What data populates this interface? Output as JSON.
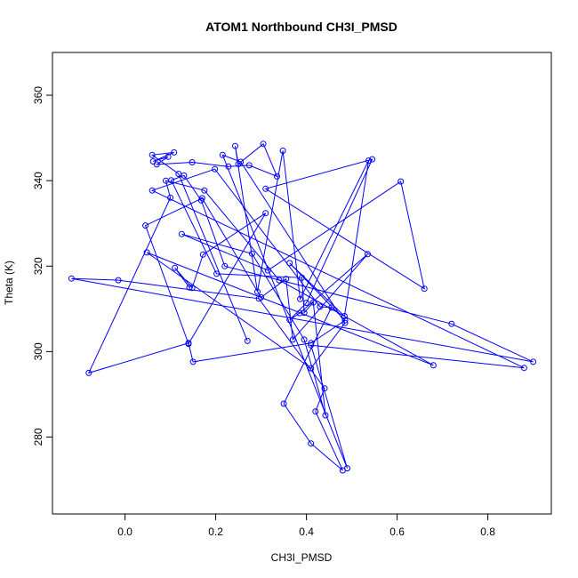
{
  "chart_data": {
    "type": "line",
    "title": "ATOM1 Northbound CH3I_PMSD",
    "xlabel": "CH3I_PMSD",
    "ylabel": "Theta (K)",
    "xlim": [
      -0.16,
      0.94
    ],
    "ylim": [
      262,
      370
    ],
    "xticks": [
      0.0,
      0.2,
      0.4,
      0.6,
      0.8
    ],
    "xtick_labels": [
      "0.0",
      "0.2",
      "0.4",
      "0.6",
      "0.8"
    ],
    "yticks": [
      280,
      300,
      320,
      340,
      360
    ],
    "ytick_labels": [
      "280",
      "300",
      "320",
      "340",
      "360"
    ],
    "grid": false,
    "color": "#0000ff",
    "series": [
      {
        "marker": "open-circle",
        "x": [
          0.27,
          0.118,
          0.06,
          0.108,
          0.062,
          0.095,
          0.07,
          0.148,
          0.228,
          0.274,
          0.335,
          0.305,
          0.25,
          0.243,
          0.292,
          0.348,
          0.386,
          0.537,
          0.484,
          0.363,
          0.485,
          0.41,
          0.15,
          0.14,
          -0.08,
          0.1,
          0.09,
          0.175,
          0.34,
          0.68,
          0.048,
          0.41,
          0.485,
          0.255,
          0.215,
          0.49,
          0.41,
          0.88,
          0.06,
          0.198,
          0.43,
          0.455,
          0.35,
          0.41,
          0.48,
          0.42,
          0.44,
          0.295,
          -0.015,
          -0.118,
          0.9,
          0.72,
          0.22,
          0.168,
          0.13,
          0.102,
          0.202,
          0.39,
          0.395,
          0.415,
          0.442,
          0.395,
          0.28,
          0.125,
          0.315,
          0.608,
          0.66,
          0.31,
          0.545,
          0.4,
          0.363,
          0.385,
          0.535,
          0.37,
          0.355,
          0.3,
          0.17,
          0.045,
          0.14,
          0.31,
          0.172,
          0.148,
          0.11,
          0.142
        ],
        "y": [
          302.5,
          341.6,
          346.0,
          346.6,
          344.5,
          345.6,
          343.8,
          344.3,
          343.3,
          343.6,
          341.0,
          348.6,
          343.9,
          348.1,
          314.0,
          347.0,
          312.3,
          344.7,
          308.3,
          320.7,
          307.3,
          302.0,
          297.6,
          302.0,
          295.0,
          336.0,
          340.0,
          337.7,
          316.7,
          296.8,
          323.2,
          296.1,
          306.7,
          344.4,
          346.0,
          272.7,
          301.5,
          296.2,
          337.7,
          342.7,
          310.5,
          310.3,
          287.8,
          278.5,
          272.2,
          286.0,
          291.4,
          312.4,
          316.7,
          317.1,
          297.6,
          306.5,
          320.0,
          335.4,
          341.2,
          340.1,
          318.2,
          317.3,
          309.1,
          311.5,
          285.1,
          302.8,
          322.9,
          327.5,
          319.0,
          339.8,
          314.7,
          338.1,
          345.0,
          311.4,
          307.4,
          309.0,
          322.8,
          302.8,
          317.0,
          312.7,
          335.9,
          329.5,
          301.8,
          332.4,
          322.7,
          314.9,
          319.6,
          315.0
        ]
      }
    ]
  }
}
